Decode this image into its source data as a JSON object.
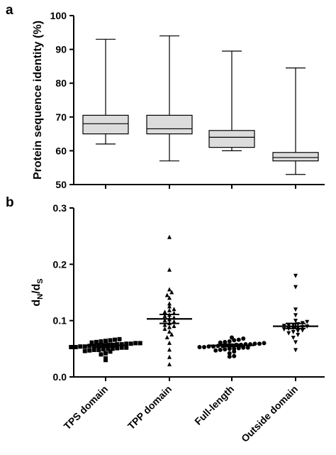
{
  "chart_data": [
    {
      "type": "box",
      "panel_label": "a",
      "ylabel": "Protein sequence identity (%)",
      "ylim": [
        50,
        100
      ],
      "yticks": [
        50,
        60,
        70,
        80,
        90,
        100
      ],
      "categories": [
        "TPS domain",
        "TPP domain",
        "Full-length",
        "Outside domain"
      ],
      "boxes": [
        {
          "min": 62,
          "q1": 65,
          "median": 68,
          "q3": 70.5,
          "max": 93
        },
        {
          "min": 57,
          "q1": 65,
          "median": 66.5,
          "q3": 70.5,
          "max": 94
        },
        {
          "min": 60,
          "q1": 61,
          "median": 64,
          "q3": 66,
          "max": 89.5
        },
        {
          "min": 53,
          "q1": 57,
          "median": 58,
          "q3": 59.5,
          "max": 84.5
        }
      ],
      "box_fill": "#dcdcdc",
      "grid": false
    },
    {
      "type": "scatter",
      "panel_label": "b",
      "ylabel_main": "d",
      "ylabel_sub1": "N",
      "ylabel_mid": "/d",
      "ylabel_sub2": "S",
      "ylim": [
        0,
        0.3
      ],
      "yticks": [
        "0.0",
        "0.1",
        "0.2",
        "0.3"
      ],
      "categories": [
        "TPS domain",
        "TPP domain",
        "Full-length",
        "Outside domain"
      ],
      "series": [
        {
          "marker": "square",
          "mean": 0.056,
          "sem_low": 0.053,
          "sem_high": 0.059,
          "values": [
            0.03,
            0.033,
            0.04,
            0.042,
            0.045,
            0.046,
            0.047,
            0.048,
            0.048,
            0.049,
            0.05,
            0.05,
            0.051,
            0.052,
            0.052,
            0.053,
            0.053,
            0.054,
            0.054,
            0.055,
            0.055,
            0.056,
            0.056,
            0.057,
            0.057,
            0.058,
            0.058,
            0.059,
            0.059,
            0.06,
            0.06,
            0.061,
            0.062,
            0.063,
            0.064,
            0.065,
            0.066,
            0.067
          ]
        },
        {
          "marker": "triangle-up",
          "mean": 0.103,
          "sem_low": 0.095,
          "sem_high": 0.111,
          "values": [
            0.022,
            0.035,
            0.048,
            0.06,
            0.07,
            0.075,
            0.08,
            0.085,
            0.088,
            0.09,
            0.092,
            0.095,
            0.098,
            0.1,
            0.102,
            0.105,
            0.108,
            0.11,
            0.113,
            0.115,
            0.118,
            0.12,
            0.125,
            0.13,
            0.14,
            0.145,
            0.15,
            0.155,
            0.19,
            0.248
          ]
        },
        {
          "marker": "circle",
          "mean": 0.056,
          "sem_low": 0.054,
          "sem_high": 0.058,
          "values": [
            0.036,
            0.037,
            0.042,
            0.045,
            0.047,
            0.048,
            0.049,
            0.05,
            0.05,
            0.051,
            0.052,
            0.052,
            0.053,
            0.053,
            0.054,
            0.054,
            0.055,
            0.055,
            0.056,
            0.056,
            0.057,
            0.057,
            0.058,
            0.058,
            0.059,
            0.059,
            0.06,
            0.061,
            0.062,
            0.063,
            0.065,
            0.066,
            0.068,
            0.07
          ]
        },
        {
          "marker": "triangle-down",
          "mean": 0.09,
          "sem_low": 0.086,
          "sem_high": 0.095,
          "values": [
            0.048,
            0.062,
            0.07,
            0.075,
            0.078,
            0.08,
            0.082,
            0.083,
            0.085,
            0.086,
            0.087,
            0.088,
            0.089,
            0.09,
            0.091,
            0.092,
            0.093,
            0.094,
            0.096,
            0.098,
            0.1,
            0.11,
            0.12,
            0.16,
            0.18
          ]
        }
      ],
      "grid": false
    }
  ]
}
